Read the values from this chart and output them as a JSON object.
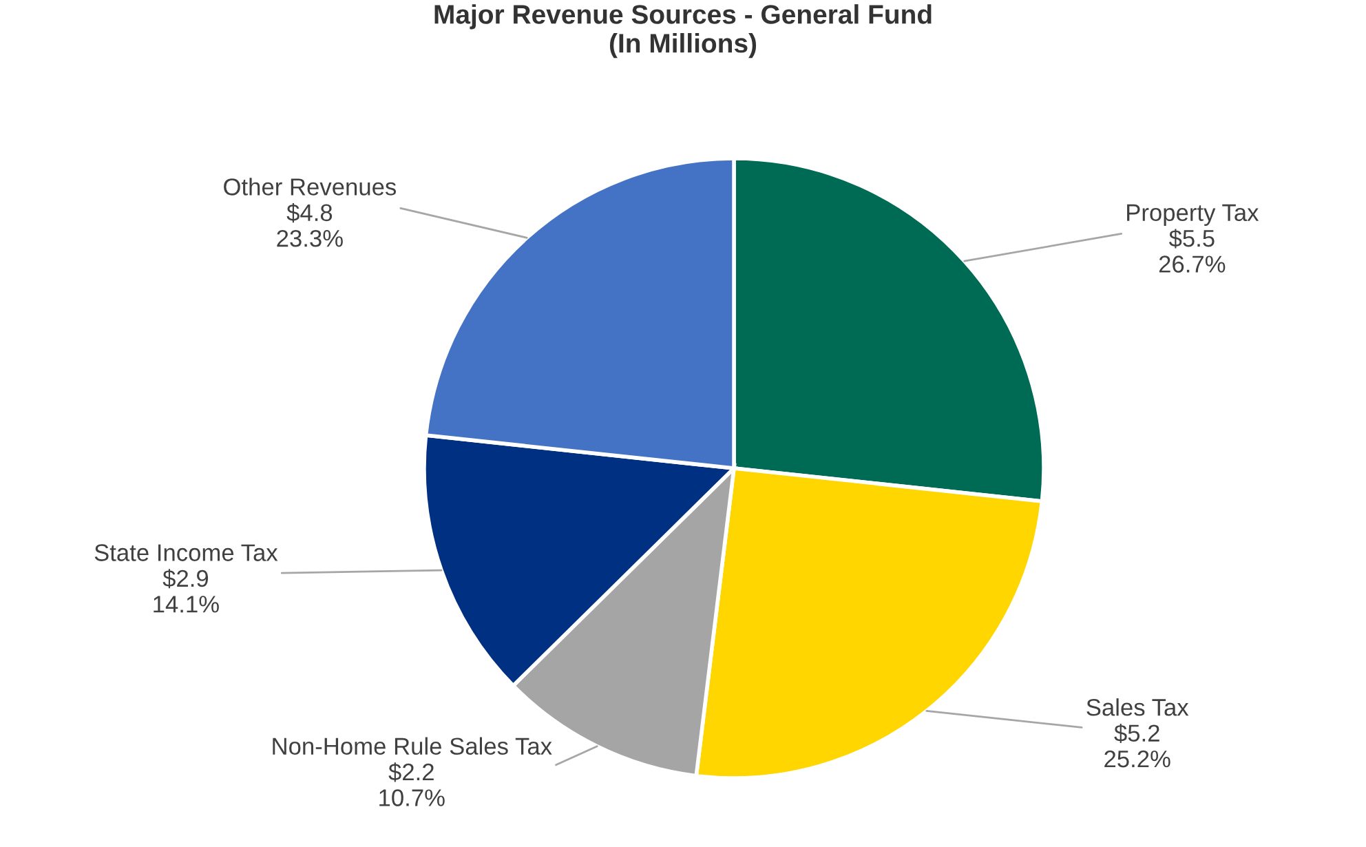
{
  "chart_data": {
    "type": "pie",
    "title": "Major Revenue Sources - General Fund\n(In Millions)",
    "categories": [
      "Property Tax",
      "Sales Tax",
      "Non-Home Rule Sales Tax",
      "State Income Tax",
      "Other Revenues"
    ],
    "values": [
      5.5,
      5.2,
      2.2,
      2.9,
      4.8
    ],
    "colors": [
      "#006b54",
      "#ffd600",
      "#a5a5a5",
      "#003082",
      "#4472c4"
    ],
    "value_labels": [
      "$5.5\n26.7%",
      "$5.2\n25.2%",
      "$2.2\n10.7%",
      "$2.9\n14.1%",
      "$4.8\n23.3%"
    ]
  }
}
